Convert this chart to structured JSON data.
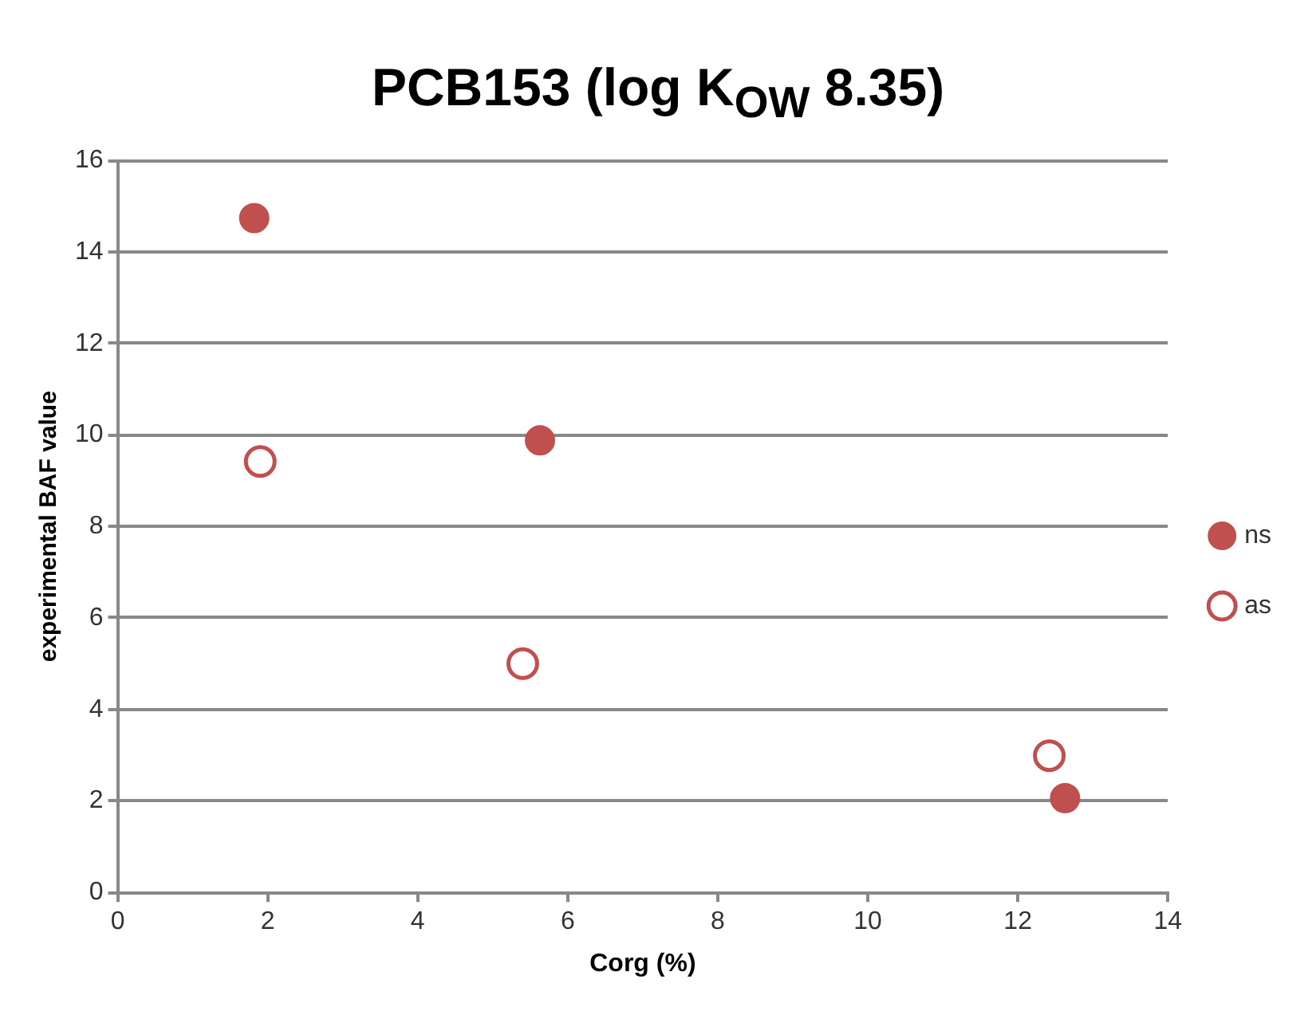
{
  "chart_data": {
    "type": "scatter",
    "title": "PCB153   (log K$_{OW}$ 8.35)",
    "xlabel": "Corg (%)",
    "ylabel": "experimental BAF value",
    "series": [
      {
        "name": "ns",
        "color": "#c0504d",
        "x": [
          1.82,
          5.63,
          12.63
        ],
        "values": [
          14.74,
          9.88,
          2.06
        ]
      },
      {
        "name": "as",
        "color": "#c0504d",
        "x": [
          1.9,
          5.4,
          12.42
        ],
        "values": [
          9.42,
          5.0,
          2.99
        ]
      }
    ],
    "xlim": [
      0,
      14
    ],
    "xticks": [
      0,
      2,
      4,
      6,
      8,
      10,
      12,
      14
    ],
    "ylim": [
      0,
      16
    ],
    "yticks": [
      0,
      2,
      4,
      6,
      8,
      10,
      12,
      14,
      16
    ],
    "grid": "y",
    "legend": "right",
    "marker": "circle"
  }
}
